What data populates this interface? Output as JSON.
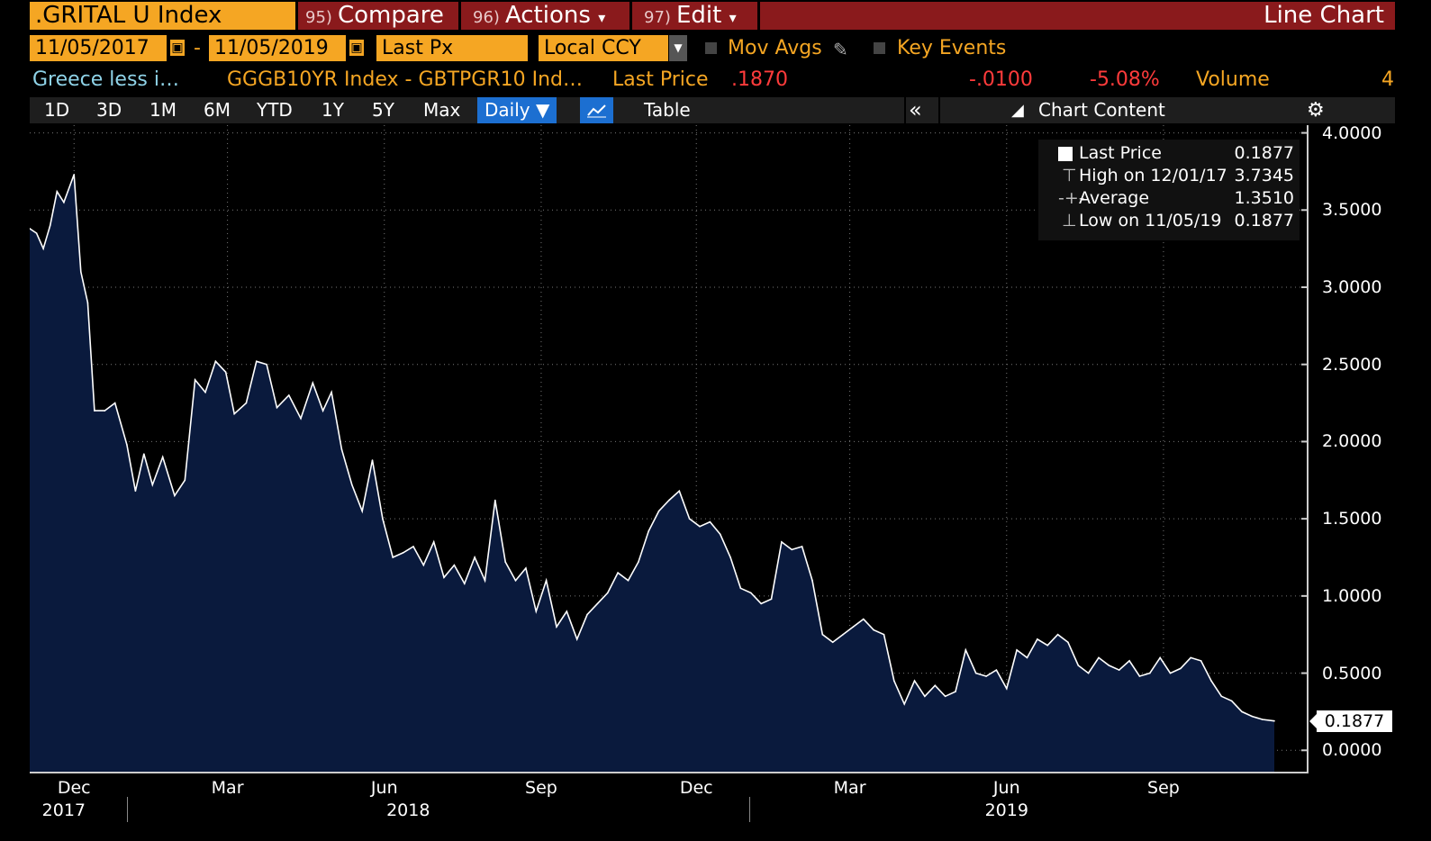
{
  "header": {
    "ticker": ".GRITAL U Index",
    "compare": {
      "num": "95)",
      "label": "Compare"
    },
    "actions": {
      "num": "96)",
      "label": "Actions",
      "arrow": "▾"
    },
    "edit": {
      "num": "97)",
      "label": "Edit",
      "arrow": "▾"
    },
    "title": "Line Chart"
  },
  "controls": {
    "start_date": "11/05/2017",
    "end_date": "11/05/2019",
    "dash": "-",
    "field": "Last Px",
    "currency": "Local CCY",
    "mov_avgs": "Mov Avgs",
    "key_events": "Key Events"
  },
  "info": {
    "security": "Greece less i…",
    "index_formula": "GGGB10YR Index - GBTPGR10 Ind…",
    "last_price_label": "Last Price",
    "last_price": ".1870",
    "change": "-.0100",
    "change_pct": "-5.08%",
    "volume_label": "Volume",
    "volume": "4"
  },
  "timeframes": [
    "1D",
    "3D",
    "1M",
    "6M",
    "YTD",
    "1Y",
    "5Y",
    "Max"
  ],
  "frequency": "Daily ▼",
  "table_label": "Table",
  "collapse": "«",
  "chart_content": "Chart Content",
  "legend": {
    "last_price": {
      "label": "Last Price",
      "value": "0.1877"
    },
    "high": {
      "label": "High on 12/01/17",
      "value": "3.7345"
    },
    "average": {
      "label": "Average",
      "value": "1.3510"
    },
    "low": {
      "label": "Low on 11/05/19",
      "value": "0.1877"
    }
  },
  "last_tag": "0.1877",
  "colors": {
    "orange": "#f5a623",
    "red_bar": "#8a1a1c",
    "blue": "#1c6fd1",
    "area_fill": "#0a1a3d",
    "neg": "#ff3b3b",
    "cyan": "#8fd3e8"
  },
  "chart_data": {
    "type": "area",
    "title": "",
    "xlabel": "",
    "ylabel": "",
    "ylim": [
      -0.15,
      4.05
    ],
    "yticks": [
      "4.0000",
      "3.5000",
      "3.0000",
      "2.5000",
      "2.0000",
      "1.5000",
      "1.0000",
      "0.5000",
      "0.0000"
    ],
    "ytick_values": [
      4.0,
      3.5,
      3.0,
      2.5,
      2.0,
      1.5,
      1.0,
      0.5,
      0.0
    ],
    "xticks": [
      {
        "label": "Dec",
        "date": "2017-12-01"
      },
      {
        "label": "Mar",
        "date": "2018-03-01"
      },
      {
        "label": "Jun",
        "date": "2018-06-01"
      },
      {
        "label": "Sep",
        "date": "2018-09-01"
      },
      {
        "label": "Dec",
        "date": "2018-12-01"
      },
      {
        "label": "Mar",
        "date": "2019-03-01"
      },
      {
        "label": "Jun",
        "date": "2019-06-01"
      },
      {
        "label": "Sep",
        "date": "2019-09-01"
      }
    ],
    "years": [
      {
        "label": "2017",
        "date": "2017-11-25"
      },
      {
        "label": "2018",
        "date": "2018-06-15"
      },
      {
        "label": "2019",
        "date": "2019-06-01"
      }
    ],
    "x_range": [
      "2017-11-05",
      "2019-11-05"
    ],
    "series": [
      {
        "points": [
          [
            "2017-11-05",
            3.38
          ],
          [
            "2017-11-09",
            3.35
          ],
          [
            "2017-11-13",
            3.25
          ],
          [
            "2017-11-17",
            3.4
          ],
          [
            "2017-11-21",
            3.62
          ],
          [
            "2017-11-25",
            3.55
          ],
          [
            "2017-12-01",
            3.73
          ],
          [
            "2017-12-05",
            3.1
          ],
          [
            "2017-12-09",
            2.9
          ],
          [
            "2017-12-13",
            2.2
          ],
          [
            "2017-12-19",
            2.2
          ],
          [
            "2017-12-25",
            2.25
          ],
          [
            "2018-01-01",
            1.98
          ],
          [
            "2018-01-06",
            1.68
          ],
          [
            "2018-01-11",
            1.92
          ],
          [
            "2018-01-16",
            1.72
          ],
          [
            "2018-01-22",
            1.9
          ],
          [
            "2018-01-29",
            1.65
          ],
          [
            "2018-02-04",
            1.75
          ],
          [
            "2018-02-10",
            2.4
          ],
          [
            "2018-02-16",
            2.32
          ],
          [
            "2018-02-22",
            2.52
          ],
          [
            "2018-02-28",
            2.45
          ],
          [
            "2018-03-05",
            2.18
          ],
          [
            "2018-03-12",
            2.25
          ],
          [
            "2018-03-18",
            2.52
          ],
          [
            "2018-03-24",
            2.5
          ],
          [
            "2018-03-30",
            2.22
          ],
          [
            "2018-04-06",
            2.3
          ],
          [
            "2018-04-13",
            2.15
          ],
          [
            "2018-04-20",
            2.38
          ],
          [
            "2018-04-26",
            2.2
          ],
          [
            "2018-05-01",
            2.32
          ],
          [
            "2018-05-07",
            1.95
          ],
          [
            "2018-05-13",
            1.72
          ],
          [
            "2018-05-19",
            1.55
          ],
          [
            "2018-05-25",
            1.88
          ],
          [
            "2018-05-31",
            1.5
          ],
          [
            "2018-06-06",
            1.25
          ],
          [
            "2018-06-12",
            1.28
          ],
          [
            "2018-06-18",
            1.32
          ],
          [
            "2018-06-24",
            1.2
          ],
          [
            "2018-06-30",
            1.35
          ],
          [
            "2018-07-06",
            1.12
          ],
          [
            "2018-07-12",
            1.2
          ],
          [
            "2018-07-18",
            1.08
          ],
          [
            "2018-07-24",
            1.25
          ],
          [
            "2018-07-30",
            1.1
          ],
          [
            "2018-08-05",
            1.62
          ],
          [
            "2018-08-11",
            1.22
          ],
          [
            "2018-08-17",
            1.1
          ],
          [
            "2018-08-23",
            1.18
          ],
          [
            "2018-08-29",
            0.9
          ],
          [
            "2018-09-04",
            1.1
          ],
          [
            "2018-09-10",
            0.8
          ],
          [
            "2018-09-16",
            0.9
          ],
          [
            "2018-09-22",
            0.72
          ],
          [
            "2018-09-28",
            0.88
          ],
          [
            "2018-10-04",
            0.95
          ],
          [
            "2018-10-10",
            1.02
          ],
          [
            "2018-10-16",
            1.15
          ],
          [
            "2018-10-22",
            1.1
          ],
          [
            "2018-10-28",
            1.22
          ],
          [
            "2018-11-03",
            1.42
          ],
          [
            "2018-11-09",
            1.55
          ],
          [
            "2018-11-15",
            1.62
          ],
          [
            "2018-11-21",
            1.68
          ],
          [
            "2018-11-27",
            1.5
          ],
          [
            "2018-12-03",
            1.45
          ],
          [
            "2018-12-09",
            1.48
          ],
          [
            "2018-12-15",
            1.4
          ],
          [
            "2018-12-21",
            1.25
          ],
          [
            "2018-12-27",
            1.05
          ],
          [
            "2019-01-02",
            1.02
          ],
          [
            "2019-01-08",
            0.95
          ],
          [
            "2019-01-14",
            0.98
          ],
          [
            "2019-01-20",
            1.35
          ],
          [
            "2019-01-26",
            1.3
          ],
          [
            "2019-02-01",
            1.32
          ],
          [
            "2019-02-07",
            1.1
          ],
          [
            "2019-02-13",
            0.75
          ],
          [
            "2019-02-19",
            0.7
          ],
          [
            "2019-02-25",
            0.75
          ],
          [
            "2019-03-03",
            0.8
          ],
          [
            "2019-03-09",
            0.85
          ],
          [
            "2019-03-15",
            0.78
          ],
          [
            "2019-03-21",
            0.75
          ],
          [
            "2019-03-27",
            0.45
          ],
          [
            "2019-04-02",
            0.3
          ],
          [
            "2019-04-08",
            0.45
          ],
          [
            "2019-04-14",
            0.35
          ],
          [
            "2019-04-20",
            0.42
          ],
          [
            "2019-04-26",
            0.35
          ],
          [
            "2019-05-02",
            0.38
          ],
          [
            "2019-05-08",
            0.65
          ],
          [
            "2019-05-14",
            0.5
          ],
          [
            "2019-05-20",
            0.48
          ],
          [
            "2019-05-26",
            0.52
          ],
          [
            "2019-06-01",
            0.4
          ],
          [
            "2019-06-07",
            0.65
          ],
          [
            "2019-06-13",
            0.6
          ],
          [
            "2019-06-19",
            0.72
          ],
          [
            "2019-06-25",
            0.68
          ],
          [
            "2019-07-01",
            0.75
          ],
          [
            "2019-07-07",
            0.7
          ],
          [
            "2019-07-13",
            0.55
          ],
          [
            "2019-07-19",
            0.5
          ],
          [
            "2019-07-25",
            0.6
          ],
          [
            "2019-07-31",
            0.55
          ],
          [
            "2019-08-06",
            0.52
          ],
          [
            "2019-08-12",
            0.58
          ],
          [
            "2019-08-18",
            0.48
          ],
          [
            "2019-08-24",
            0.5
          ],
          [
            "2019-08-30",
            0.6
          ],
          [
            "2019-09-05",
            0.5
          ],
          [
            "2019-09-11",
            0.53
          ],
          [
            "2019-09-17",
            0.6
          ],
          [
            "2019-09-23",
            0.58
          ],
          [
            "2019-09-29",
            0.45
          ],
          [
            "2019-10-05",
            0.35
          ],
          [
            "2019-10-11",
            0.32
          ],
          [
            "2019-10-17",
            0.25
          ],
          [
            "2019-10-23",
            0.22
          ],
          [
            "2019-10-29",
            0.2
          ],
          [
            "2019-11-05",
            0.19
          ]
        ]
      }
    ],
    "grid": true,
    "legend_position": "top-right"
  }
}
